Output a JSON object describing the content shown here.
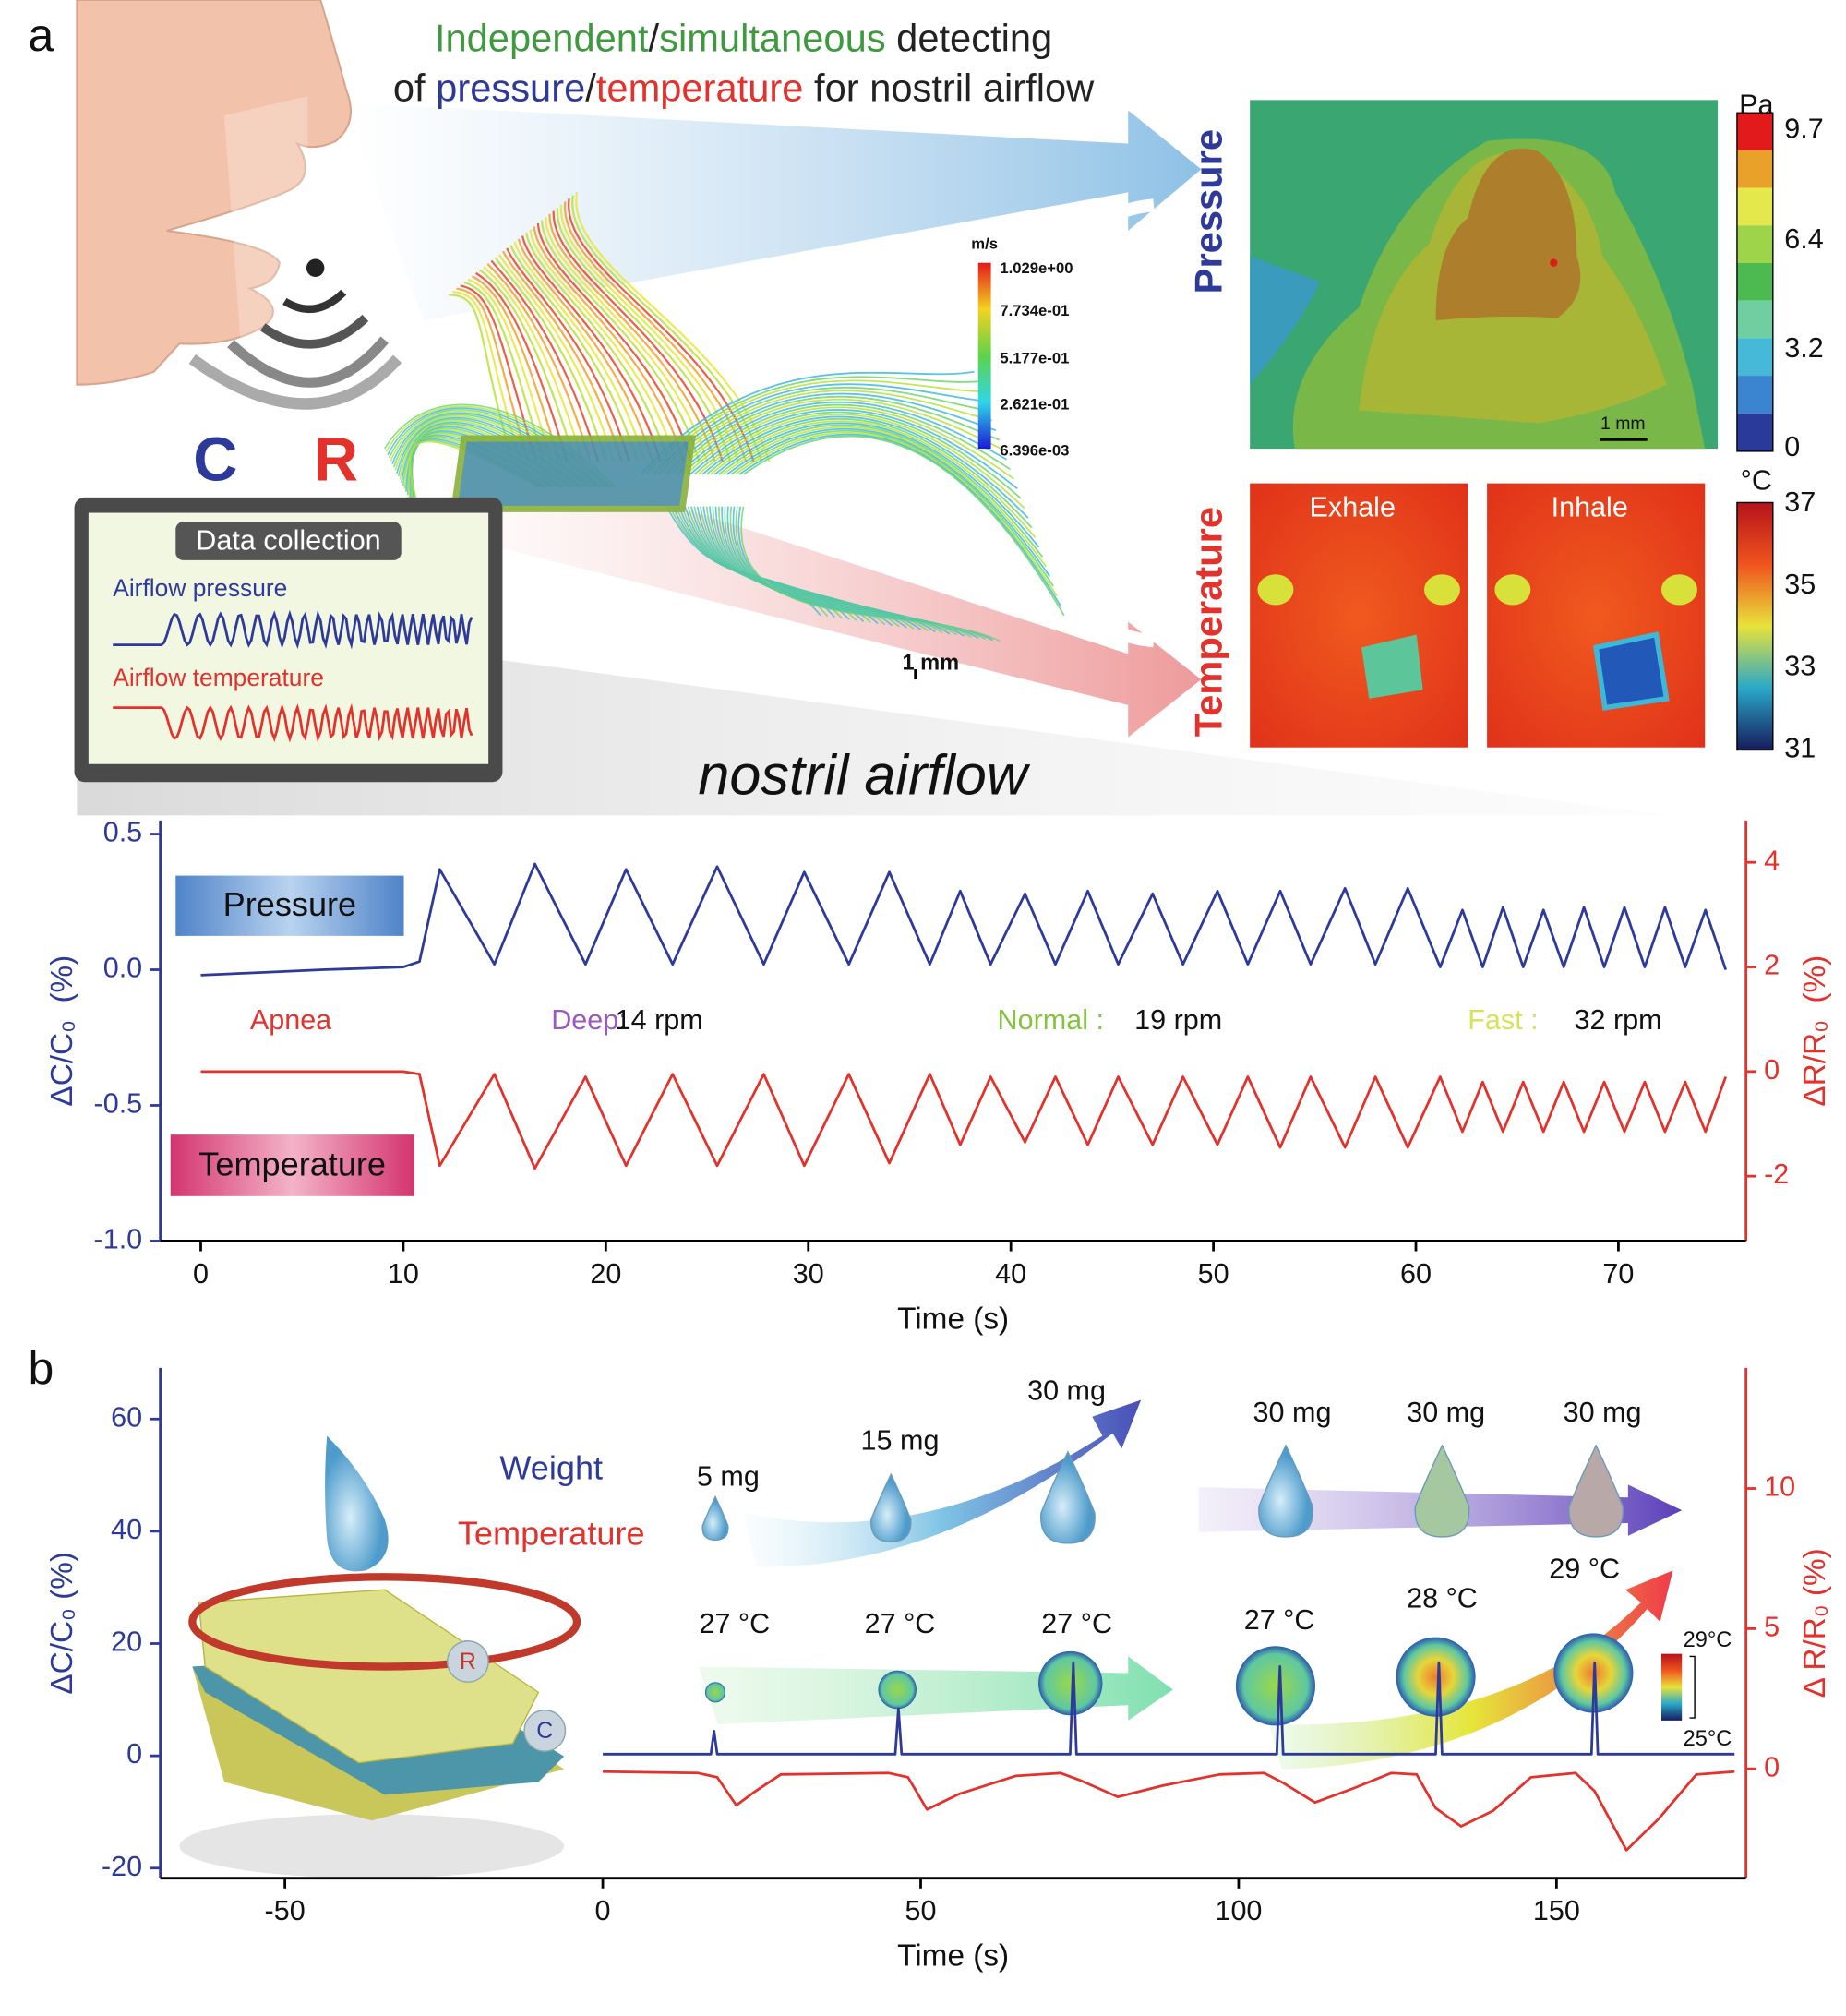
{
  "panel_a": {
    "label": "a",
    "title": [
      [
        {
          "text": "Independent",
          "color": "#3f9a3f"
        },
        {
          "text": "/",
          "color": "#222222"
        },
        {
          "text": "simultaneous",
          "color": "#3f9a3f"
        },
        {
          "text": " detecting",
          "color": "#222222"
        }
      ],
      [
        {
          "text": "of ",
          "color": "#222222"
        },
        {
          "text": "pressure",
          "color": "#2e3a99"
        },
        {
          "text": "/",
          "color": "#222222"
        },
        {
          "text": "temperature",
          "color": "#e3312c"
        },
        {
          "text": " for nostril airflow",
          "color": "#222222"
        }
      ]
    ],
    "sensor_labels": [
      "C",
      "R"
    ],
    "monitor": {
      "title": "Data collection",
      "pressure": "Airflow pressure",
      "temperature": "Airflow temperature"
    },
    "velocity_colorbar": {
      "unit": "m/s",
      "labels": [
        "1.029e+00",
        "7.734e-01",
        "5.177e-01",
        "2.621e-01",
        "6.396e-03"
      ]
    },
    "scale_bar": "1 mm",
    "caption": "nostril airflow",
    "pressure_map": {
      "label": "Pressure",
      "unit": "Pa",
      "ticks": [
        9.7,
        6.4,
        3.2,
        0
      ],
      "scale_bar": "1 mm"
    },
    "temperature_map": {
      "label": "Temperature",
      "unit": "°C",
      "ticks": [
        37,
        35,
        33,
        31
      ],
      "panels": [
        "Exhale",
        "Inhale"
      ]
    }
  },
  "panel_b": {
    "label": "b",
    "weights": [
      "5 mg",
      "15 mg",
      "30 mg",
      "30 mg",
      "30 mg",
      "30 mg"
    ],
    "temperatures": [
      "27 °C",
      "27 °C",
      "27 °C",
      "27 °C",
      "28 °C",
      "29 °C"
    ],
    "colorbar": [
      "29°C",
      "25°C"
    ],
    "sensor_labels": [
      "R",
      "C"
    ]
  },
  "chart_data": [
    {
      "type": "line",
      "xlabel": "Time (s)",
      "ylabel": "ΔC/C₀  (%)",
      "y2label": "ΔR/R₀  (%)",
      "xlim": [
        -2,
        76.3
      ],
      "xticks": [
        0,
        10,
        20,
        30,
        40,
        50,
        60,
        70
      ],
      "ylim": [
        -1.0,
        0.55
      ],
      "yticks": [
        {
          "value": -1.0,
          "label": "-1.0"
        },
        -0.5,
        {
          "value": 0,
          "label": "0.0"
        },
        0.5
      ],
      "y2lim": [
        -3.24,
        4.8
      ],
      "y2ticks": [
        -2,
        0,
        2,
        4
      ],
      "x": [
        0,
        3,
        6,
        10,
        10.8,
        11.8,
        14.5,
        16.5,
        19,
        21,
        23.3,
        25.5,
        27.8,
        29.8,
        32,
        34,
        36,
        37.5,
        39,
        40.7,
        42.2,
        43.8,
        45.3,
        47,
        48.5,
        50.2,
        51.7,
        53.3,
        54.8,
        56.5,
        58,
        59.6,
        61.2,
        62.3,
        63.3,
        64.3,
        65.3,
        66.3,
        67.3,
        68.3,
        69.3,
        70.3,
        71.3,
        72.3,
        73.3,
        74.3,
        75.3
      ],
      "series": [
        {
          "name": "Pressure",
          "color": "#2e3a99",
          "values": [
            -0.02,
            -0.01,
            0.0,
            0.01,
            0.03,
            0.37,
            0.02,
            0.39,
            0.02,
            0.37,
            0.02,
            0.38,
            0.02,
            0.36,
            0.02,
            0.36,
            0.02,
            0.29,
            0.02,
            0.28,
            0.02,
            0.29,
            0.02,
            0.28,
            0.02,
            0.29,
            0.02,
            0.29,
            0.02,
            0.3,
            0.02,
            0.3,
            0.01,
            0.22,
            0.01,
            0.23,
            0.01,
            0.22,
            0.01,
            0.23,
            0.01,
            0.23,
            0.01,
            0.23,
            0.01,
            0.22,
            0.0
          ]
        },
        {
          "name": "Temperature",
          "color": "#e3312c",
          "axis": "y2",
          "values": [
            0.0,
            0.0,
            0.0,
            0.0,
            -0.05,
            -1.8,
            -0.05,
            -1.85,
            -0.1,
            -1.8,
            -0.05,
            -1.8,
            -0.05,
            -1.8,
            -0.05,
            -1.75,
            -0.05,
            -1.4,
            -0.1,
            -1.35,
            -0.1,
            -1.4,
            -0.1,
            -1.4,
            -0.1,
            -1.4,
            -0.1,
            -1.45,
            -0.1,
            -1.45,
            -0.1,
            -1.45,
            -0.1,
            -1.15,
            -0.2,
            -1.15,
            -0.2,
            -1.15,
            -0.2,
            -1.15,
            -0.2,
            -1.15,
            -0.2,
            -1.15,
            -0.2,
            -1.15,
            -0.1
          ]
        }
      ],
      "annotations": [
        {
          "text": "Apnea",
          "color": "#e3312c"
        },
        {
          "text": "Deep:",
          "color": "#9b59c0"
        },
        {
          "text": "14 rpm",
          "color": "#111111"
        },
        {
          "text": "Normal :",
          "color": "#86c440"
        },
        {
          "text": "19 rpm",
          "color": "#111111"
        },
        {
          "text": "Fast :",
          "color": "#d9e05a"
        },
        {
          "text": "32 rpm",
          "color": "#111111"
        }
      ]
    },
    {
      "type": "line",
      "xlabel": "Time (s)",
      "ylabel": "ΔC/C₀ (%)",
      "y2label": "Δ R/R₀ (%)",
      "xlim": [
        -69.6,
        179.8
      ],
      "xticks": [
        -50,
        0,
        50,
        100,
        150
      ],
      "ylim": [
        -21.8,
        69.1
      ],
      "yticks": [
        -20,
        0,
        20,
        40,
        60
      ],
      "y2lim": [
        -3.9,
        14.3
      ],
      "y2ticks": [
        0,
        5,
        10
      ],
      "series": [
        {
          "name": "Weight",
          "color": "#2e3a99",
          "x": [
            0,
            17,
            17.5,
            18,
            46,
            46.5,
            47,
            73.5,
            74,
            74.5,
            106,
            106.5,
            107,
            131,
            131.5,
            132,
            155.5,
            156,
            156.5,
            178
          ],
          "values": [
            0.3,
            0.3,
            4.4,
            0.3,
            0.3,
            8.4,
            0.3,
            0.3,
            16.6,
            0.3,
            0.3,
            15.9,
            0.3,
            0.3,
            16.6,
            0.3,
            0.3,
            16.6,
            0.3,
            0.3
          ]
        },
        {
          "name": "Temperature",
          "color": "#e3312c",
          "axis": "y2",
          "x": [
            0,
            15,
            18,
            21,
            24,
            28,
            45,
            48,
            51,
            56,
            65,
            72,
            75,
            81,
            88,
            97,
            104,
            107,
            112,
            118,
            124,
            128,
            131,
            135,
            140,
            146,
            153,
            156,
            161,
            166,
            172,
            178
          ],
          "values": [
            -0.1,
            -0.15,
            -0.3,
            -1.3,
            -0.8,
            -0.2,
            -0.15,
            -0.3,
            -1.45,
            -0.9,
            -0.25,
            -0.15,
            -0.4,
            -1.0,
            -0.6,
            -0.2,
            -0.15,
            -0.5,
            -1.2,
            -0.7,
            -0.15,
            -0.2,
            -1.4,
            -2.05,
            -1.5,
            -0.3,
            -0.15,
            -0.8,
            -2.9,
            -1.8,
            -0.2,
            -0.1
          ]
        }
      ]
    }
  ]
}
